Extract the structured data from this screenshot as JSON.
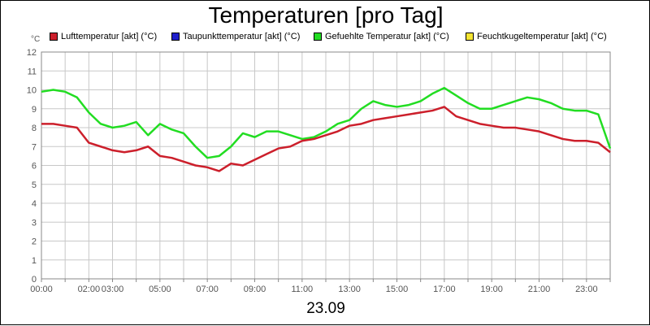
{
  "chart_data": {
    "type": "line",
    "title": "Temperaturen [pro Tag]",
    "y_unit": "°C",
    "date_label": "23.09",
    "ylim": [
      0,
      12
    ],
    "y_ticks": [
      "0",
      "1",
      "2",
      "3",
      "4",
      "5",
      "6",
      "7",
      "8",
      "9",
      "10",
      "11",
      "12"
    ],
    "x_tick_labels": [
      "00:00",
      "02:00",
      "03:00",
      "05:00",
      "07:00",
      "09:00",
      "11:00",
      "13:00",
      "15:00",
      "17:00",
      "19:00",
      "21:00",
      "23:00"
    ],
    "x_tick_hours": [
      0,
      2,
      3,
      5,
      7,
      9,
      11,
      13,
      15,
      17,
      19,
      21,
      23
    ],
    "grid": true,
    "legend_position": "top",
    "legend": [
      {
        "label": "Lufttemperatur [akt] (°C)",
        "color": "#cc1f2b"
      },
      {
        "label": "Taupunkttemperatur [akt] (°C)",
        "color": "#1f1fcc"
      },
      {
        "label": "Gefuehlte Temperatur [akt] (°C)",
        "color": "#22dd22"
      },
      {
        "label": "Feuchtkugeltemperatur [akt] (°C)",
        "color": "#f5e532"
      }
    ],
    "x_hours": [
      0,
      0.5,
      1,
      1.5,
      2,
      2.5,
      3,
      3.5,
      4,
      4.5,
      5,
      5.5,
      6,
      6.5,
      7,
      7.5,
      8,
      8.5,
      9,
      9.5,
      10,
      10.5,
      11,
      11.5,
      12,
      12.5,
      13,
      13.5,
      14,
      14.5,
      15,
      15.5,
      16,
      16.5,
      17,
      17.5,
      18,
      18.5,
      19,
      19.5,
      20,
      20.5,
      21,
      21.5,
      22,
      22.5,
      23,
      23.5,
      24
    ],
    "series": [
      {
        "name": "Lufttemperatur [akt] (°C)",
        "color": "#cc1f2b",
        "values": [
          8.2,
          8.2,
          8.1,
          8.0,
          7.2,
          7.0,
          6.8,
          6.7,
          6.8,
          7.0,
          6.5,
          6.4,
          6.2,
          6.0,
          5.9,
          5.7,
          6.1,
          6.0,
          6.3,
          6.6,
          6.9,
          7.0,
          7.3,
          7.4,
          7.6,
          7.8,
          8.1,
          8.2,
          8.4,
          8.5,
          8.6,
          8.7,
          8.8,
          8.9,
          9.1,
          8.6,
          8.4,
          8.2,
          8.1,
          8.0,
          8.0,
          7.9,
          7.8,
          7.6,
          7.4,
          7.3,
          7.3,
          7.2,
          6.7
        ]
      },
      {
        "name": "Gefuehlte Temperatur [akt] (°C)",
        "color": "#22dd22",
        "values": [
          9.9,
          10.0,
          9.9,
          9.6,
          8.8,
          8.2,
          8.0,
          8.1,
          8.3,
          7.6,
          8.2,
          7.9,
          7.7,
          7.0,
          6.4,
          6.5,
          7.0,
          7.7,
          7.5,
          7.8,
          7.8,
          7.6,
          7.4,
          7.5,
          7.8,
          8.2,
          8.4,
          9.0,
          9.4,
          9.2,
          9.1,
          9.2,
          9.4,
          9.8,
          10.1,
          9.7,
          9.3,
          9.0,
          9.0,
          9.2,
          9.4,
          9.6,
          9.5,
          9.3,
          9.0,
          8.9,
          8.9,
          8.7,
          6.9
        ]
      }
    ]
  }
}
